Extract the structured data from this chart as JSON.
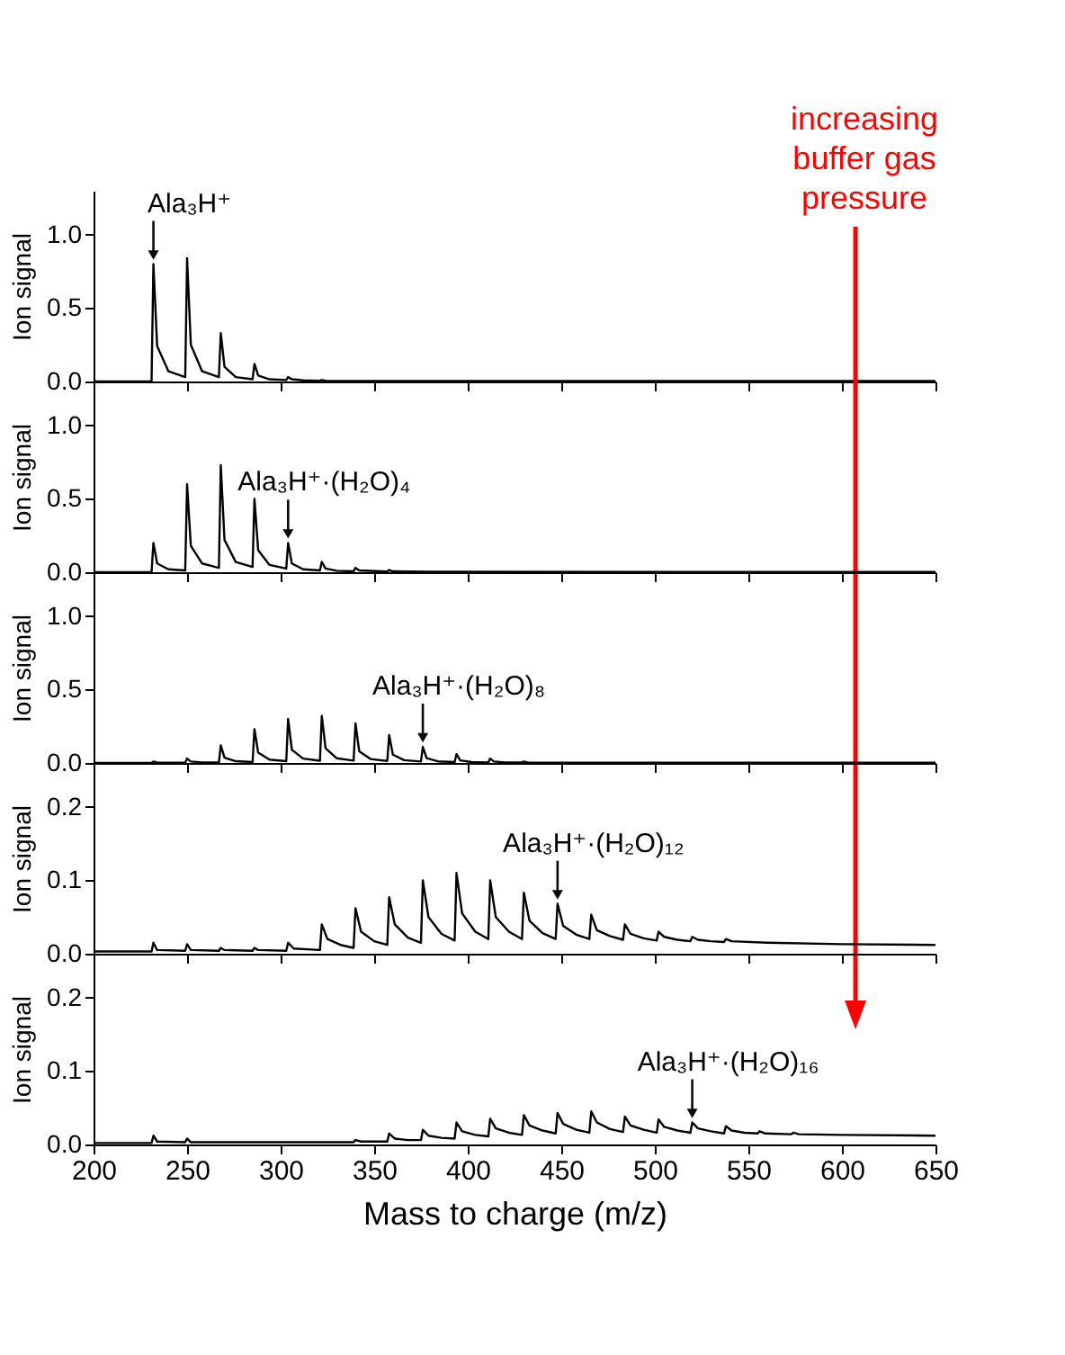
{
  "chart_data": [
    {
      "type": "line",
      "ylabel": "Ion signal",
      "xlim": [
        200,
        650
      ],
      "xticks": [
        200,
        250,
        300,
        350,
        400,
        450,
        500,
        550,
        600,
        650
      ],
      "ylim": [
        0,
        1.3
      ],
      "yticks": [
        {
          "value": 0,
          "label": "0.0"
        },
        {
          "value": 0.5,
          "label": "0.5"
        },
        {
          "value": 1,
          "label": "1.0"
        }
      ],
      "tick_labels": "y",
      "grid": false,
      "series": [
        {
          "color": "#000000",
          "x": [
            200,
            231,
            232,
            234,
            240,
            249,
            250,
            252,
            258,
            267,
            268,
            270,
            276,
            285,
            286,
            288,
            294,
            303,
            304,
            306,
            312,
            321,
            322,
            324,
            340,
            650
          ],
          "values": [
            0,
            0,
            0.8,
            0.24,
            0.07,
            0.03,
            0.84,
            0.25,
            0.07,
            0.03,
            0.33,
            0.1,
            0.03,
            0.015,
            0.12,
            0.04,
            0.015,
            0.01,
            0.03,
            0.015,
            0.008,
            0.005,
            0.01,
            0.005,
            0.003,
            0.003
          ]
        }
      ],
      "annotations": [
        {
          "text": "Ala₃H⁺",
          "x": 232,
          "y": 0.8
        },
        "increasing\nbuffer gas\npressure"
      ]
    },
    {
      "type": "line",
      "ylabel": "Ion signal",
      "xlim": [
        200,
        650
      ],
      "xticks": [
        200,
        250,
        300,
        350,
        400,
        450,
        500,
        550,
        600,
        650
      ],
      "ylim": [
        0,
        1.3
      ],
      "yticks": [
        {
          "value": 0,
          "label": "0.0"
        },
        {
          "value": 0.5,
          "label": "0.5"
        },
        {
          "value": 1,
          "label": "1.0"
        }
      ],
      "tick_labels": "y",
      "grid": false,
      "series": [
        {
          "color": "#000000",
          "x": [
            200,
            231,
            232,
            234,
            240,
            249,
            250,
            252,
            258,
            267,
            268,
            270,
            276,
            285,
            286,
            288,
            294,
            303,
            304,
            306,
            312,
            321,
            322,
            324,
            330,
            339,
            340,
            342,
            357,
            358,
            360,
            380,
            650
          ],
          "values": [
            0,
            0,
            0.2,
            0.06,
            0.02,
            0.012,
            0.6,
            0.18,
            0.06,
            0.03,
            0.73,
            0.22,
            0.07,
            0.036,
            0.5,
            0.15,
            0.05,
            0.025,
            0.2,
            0.06,
            0.02,
            0.012,
            0.07,
            0.025,
            0.01,
            0.006,
            0.03,
            0.012,
            0.005,
            0.015,
            0.006,
            0.003,
            0.002
          ]
        }
      ],
      "annotations": [
        {
          "text": "Ala₃H⁺·(H₂O)₄",
          "x": 304,
          "y": 0.2
        }
      ]
    },
    {
      "type": "line",
      "ylabel": "Ion signal",
      "xlim": [
        200,
        650
      ],
      "xticks": [
        200,
        250,
        300,
        350,
        400,
        450,
        500,
        550,
        600,
        650
      ],
      "ylim": [
        0,
        1.3
      ],
      "yticks": [
        {
          "value": 0,
          "label": "0.0"
        },
        {
          "value": 0.5,
          "label": "0.5"
        },
        {
          "value": 1,
          "label": "1.0"
        }
      ],
      "tick_labels": "y",
      "grid": false,
      "series": [
        {
          "color": "#000000",
          "x": [
            200,
            231,
            232,
            234,
            240,
            249,
            250,
            252,
            258,
            267,
            268,
            270,
            276,
            285,
            286,
            288,
            294,
            303,
            304,
            306,
            312,
            321,
            322,
            324,
            330,
            339,
            340,
            342,
            348,
            357,
            358,
            360,
            366,
            375,
            376,
            378,
            384,
            393,
            394,
            396,
            402,
            411,
            412,
            414,
            420,
            429,
            430,
            432,
            450,
            650
          ],
          "values": [
            0,
            0,
            0.01,
            0.004,
            0.002,
            0.002,
            0.03,
            0.01,
            0.004,
            0.003,
            0.12,
            0.036,
            0.012,
            0.006,
            0.23,
            0.07,
            0.023,
            0.012,
            0.3,
            0.09,
            0.03,
            0.015,
            0.32,
            0.1,
            0.032,
            0.016,
            0.27,
            0.08,
            0.027,
            0.014,
            0.19,
            0.057,
            0.019,
            0.01,
            0.11,
            0.033,
            0.011,
            0.006,
            0.06,
            0.018,
            0.006,
            0.004,
            0.03,
            0.01,
            0.004,
            0.003,
            0.01,
            0.004,
            0.002,
            0.002
          ]
        }
      ],
      "annotations": [
        {
          "text": "Ala₃H⁺·(H₂O)₈",
          "x": 376,
          "y": 0.11
        }
      ]
    },
    {
      "type": "line",
      "ylabel": "Ion signal",
      "xlim": [
        200,
        650
      ],
      "xticks": [
        200,
        250,
        300,
        350,
        400,
        450,
        500,
        550,
        600,
        650
      ],
      "ylim": [
        0,
        0.26
      ],
      "yticks": [
        {
          "value": 0,
          "label": "0.0"
        },
        {
          "value": 0.1,
          "label": "0.1"
        },
        {
          "value": 0.2,
          "label": "0.2"
        }
      ],
      "tick_labels": "y",
      "grid": false,
      "series": [
        {
          "color": "#000000",
          "x": [
            200,
            231,
            232,
            234,
            249,
            250,
            252,
            267,
            268,
            270,
            285,
            286,
            288,
            303,
            304,
            307,
            321,
            322,
            325,
            332,
            339,
            340,
            343,
            350,
            357,
            358,
            361,
            368,
            375,
            376,
            379,
            386,
            393,
            394,
            397,
            404,
            411,
            412,
            415,
            422,
            429,
            430,
            433,
            440,
            447,
            448,
            451,
            458,
            465,
            466,
            469,
            476,
            483,
            484,
            487,
            494,
            501,
            502,
            505,
            512,
            519,
            520,
            523,
            530,
            537,
            538,
            541,
            560,
            600,
            650
          ],
          "values": [
            0.003,
            0.003,
            0.015,
            0.005,
            0.004,
            0.013,
            0.005,
            0.004,
            0.008,
            0.005,
            0.004,
            0.008,
            0.005,
            0.004,
            0.015,
            0.007,
            0.005,
            0.04,
            0.02,
            0.012,
            0.008,
            0.062,
            0.03,
            0.017,
            0.012,
            0.077,
            0.04,
            0.022,
            0.015,
            0.1,
            0.05,
            0.027,
            0.018,
            0.11,
            0.055,
            0.03,
            0.02,
            0.1,
            0.05,
            0.03,
            0.02,
            0.083,
            0.045,
            0.028,
            0.02,
            0.068,
            0.038,
            0.026,
            0.02,
            0.053,
            0.032,
            0.024,
            0.019,
            0.04,
            0.027,
            0.021,
            0.018,
            0.03,
            0.023,
            0.019,
            0.017,
            0.023,
            0.019,
            0.017,
            0.016,
            0.02,
            0.017,
            0.015,
            0.013,
            0.012
          ]
        }
      ],
      "annotations": [
        {
          "text": "Ala₃H⁺·(H₂O)₁₂",
          "x": 448,
          "y": 0.068
        }
      ]
    },
    {
      "type": "line",
      "ylabel": "Ion signal",
      "xlabel": "Mass to charge (m/z)",
      "xlim": [
        200,
        650
      ],
      "xticks": [
        200,
        250,
        300,
        350,
        400,
        450,
        500,
        550,
        600,
        650
      ],
      "ylim": [
        0,
        0.26
      ],
      "yticks": [
        {
          "value": 0,
          "label": "0.0"
        },
        {
          "value": 0.1,
          "label": "0.1"
        },
        {
          "value": 0.2,
          "label": "0.2"
        }
      ],
      "grid": false,
      "series": [
        {
          "color": "#000000",
          "x": [
            200,
            231,
            232,
            234,
            249,
            250,
            252,
            339,
            340,
            343,
            357,
            358,
            361,
            368,
            375,
            376,
            379,
            386,
            393,
            394,
            397,
            404,
            411,
            412,
            415,
            422,
            429,
            430,
            433,
            440,
            447,
            448,
            451,
            458,
            465,
            466,
            469,
            476,
            483,
            484,
            487,
            494,
            501,
            502,
            505,
            512,
            519,
            520,
            523,
            530,
            537,
            538,
            541,
            548,
            555,
            556,
            559,
            573,
            574,
            577,
            600,
            650
          ],
          "values": [
            0.002,
            0.002,
            0.012,
            0.004,
            0.003,
            0.008,
            0.003,
            0.003,
            0.006,
            0.004,
            0.004,
            0.015,
            0.008,
            0.006,
            0.006,
            0.02,
            0.012,
            0.009,
            0.008,
            0.03,
            0.018,
            0.013,
            0.011,
            0.035,
            0.022,
            0.016,
            0.013,
            0.04,
            0.026,
            0.019,
            0.015,
            0.043,
            0.028,
            0.02,
            0.016,
            0.045,
            0.03,
            0.021,
            0.017,
            0.038,
            0.026,
            0.02,
            0.016,
            0.034,
            0.024,
            0.019,
            0.016,
            0.03,
            0.022,
            0.018,
            0.015,
            0.025,
            0.019,
            0.016,
            0.015,
            0.018,
            0.015,
            0.014,
            0.016,
            0.014,
            0.013,
            0.012
          ]
        }
      ],
      "annotations": [
        {
          "text": "Ala₃H⁺·(H₂O)₁₆",
          "x": 520,
          "y": 0.03
        }
      ]
    }
  ]
}
